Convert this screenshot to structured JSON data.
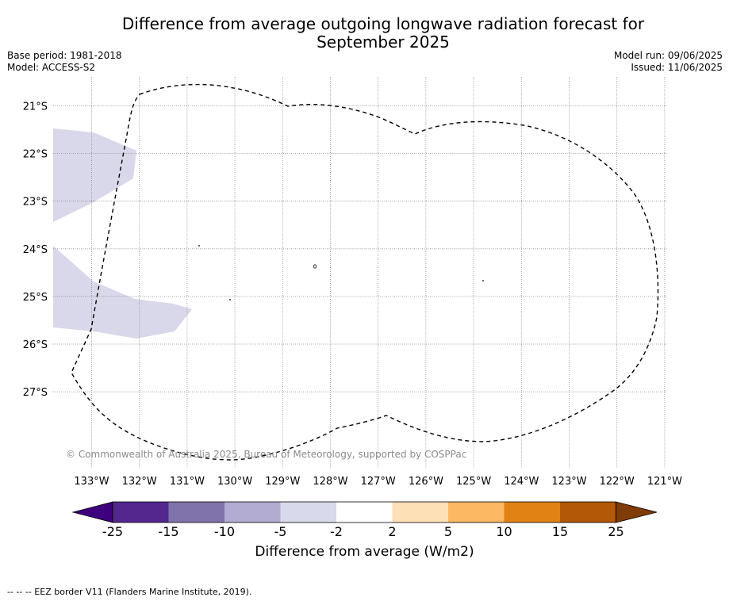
{
  "header": {
    "title_line1": "Difference from average outgoing longwave radiation forecast for",
    "title_line2": "September 2025",
    "base_period": "Base period: 1981-2018",
    "model": "Model: ACCESS-S2",
    "model_run": "Model run: 09/06/2025",
    "issued": "Issued: 11/06/2025"
  },
  "map": {
    "lat_labels": [
      "21°S",
      "22°S",
      "23°S",
      "24°S",
      "25°S",
      "26°S",
      "27°S"
    ],
    "lon_labels": [
      "133°W",
      "132°W",
      "131°W",
      "130°W",
      "129°W",
      "128°W",
      "127°W",
      "126°W",
      "125°W",
      "124°W",
      "123°W",
      "122°W",
      "121°W"
    ],
    "copyright": "© Commonwealth of Australia 2025, Bureau of Meteorology, supported by COSPPac",
    "anomaly_fill_color": "#d8d8ea",
    "eez_border_color": "#000000"
  },
  "colorbar": {
    "ticks": [
      "-25",
      "-15",
      "-10",
      "-5",
      "-2",
      "2",
      "5",
      "10",
      "15",
      "25"
    ],
    "colors": [
      "#3f007d",
      "#54278f",
      "#8073ac",
      "#b2abd2",
      "#d8daeb",
      "#ffffff",
      "#fee0b6",
      "#fdb863",
      "#e08214",
      "#b35806",
      "#7f3b08"
    ],
    "label": "Difference from average (W/m2)"
  },
  "footer": {
    "eez_legend": "-- -- -- EEZ border V11 (Flanders Marine Institute, 2019)."
  }
}
